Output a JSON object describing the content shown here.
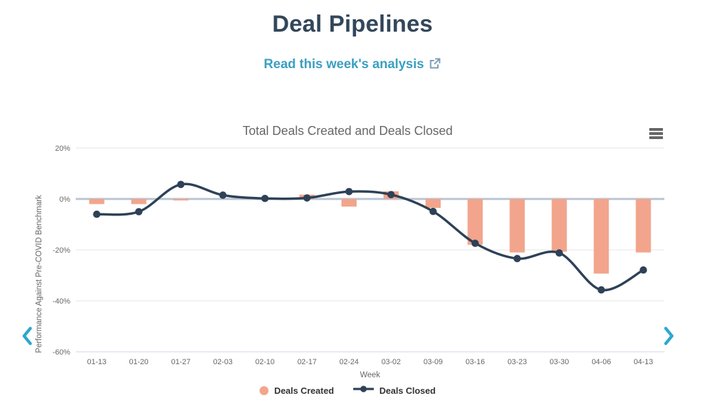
{
  "page": {
    "title": "Deal Pipelines",
    "link_label": "Read this week's analysis"
  },
  "colors": {
    "title_navy": "#33475b",
    "link_teal": "#3b9fc1",
    "external_icon": "#7e9cb4",
    "bar_salmon": "#f2a58c",
    "line_navy": "#2e4157",
    "gridline": "#e6e6e6",
    "zero_line": "#b9c5d2",
    "axis_line": "#ccd6eb",
    "tick_text": "#666666",
    "legend_text": "#333333",
    "chevron_teal": "#2fa8cc",
    "menu_icon": "#666666"
  },
  "chart_data": {
    "type": "combo-bar-line",
    "title": "Total Deals Created and Deals Closed",
    "xlabel": "Week",
    "ylabel": "Performance Against Pre-COVID Benchmark",
    "categories": [
      "01-13",
      "01-20",
      "01-27",
      "02-03",
      "02-10",
      "02-17",
      "02-24",
      "03-02",
      "03-09",
      "03-16",
      "03-23",
      "03-30",
      "04-06",
      "04-13"
    ],
    "series": [
      {
        "name": "Deals Created",
        "type": "bar",
        "color": "#f2a58c",
        "values": [
          -2,
          -2,
          -0.6,
          0,
          0,
          1.7,
          -3,
          3,
          -3.5,
          -18,
          -21,
          -20.7,
          -29.3,
          -21
        ]
      },
      {
        "name": "Deals Closed",
        "type": "line",
        "color": "#2e4157",
        "values": [
          -6,
          -5,
          5.7,
          1.5,
          0.2,
          0.4,
          2.9,
          1.7,
          -4.9,
          -17.4,
          -23.4,
          -21.2,
          -35.7,
          -27.9
        ]
      }
    ],
    "ylim": [
      -60,
      20
    ],
    "yticks": [
      20,
      0,
      -20,
      -40,
      -60
    ],
    "ytick_labels": [
      "20%",
      "0%",
      "-20%",
      "-40%",
      "-60%"
    ],
    "grid": true,
    "zero_line": true,
    "legend_position": "bottom"
  },
  "nav": {
    "prev": "previous-chart",
    "next": "next-chart"
  }
}
